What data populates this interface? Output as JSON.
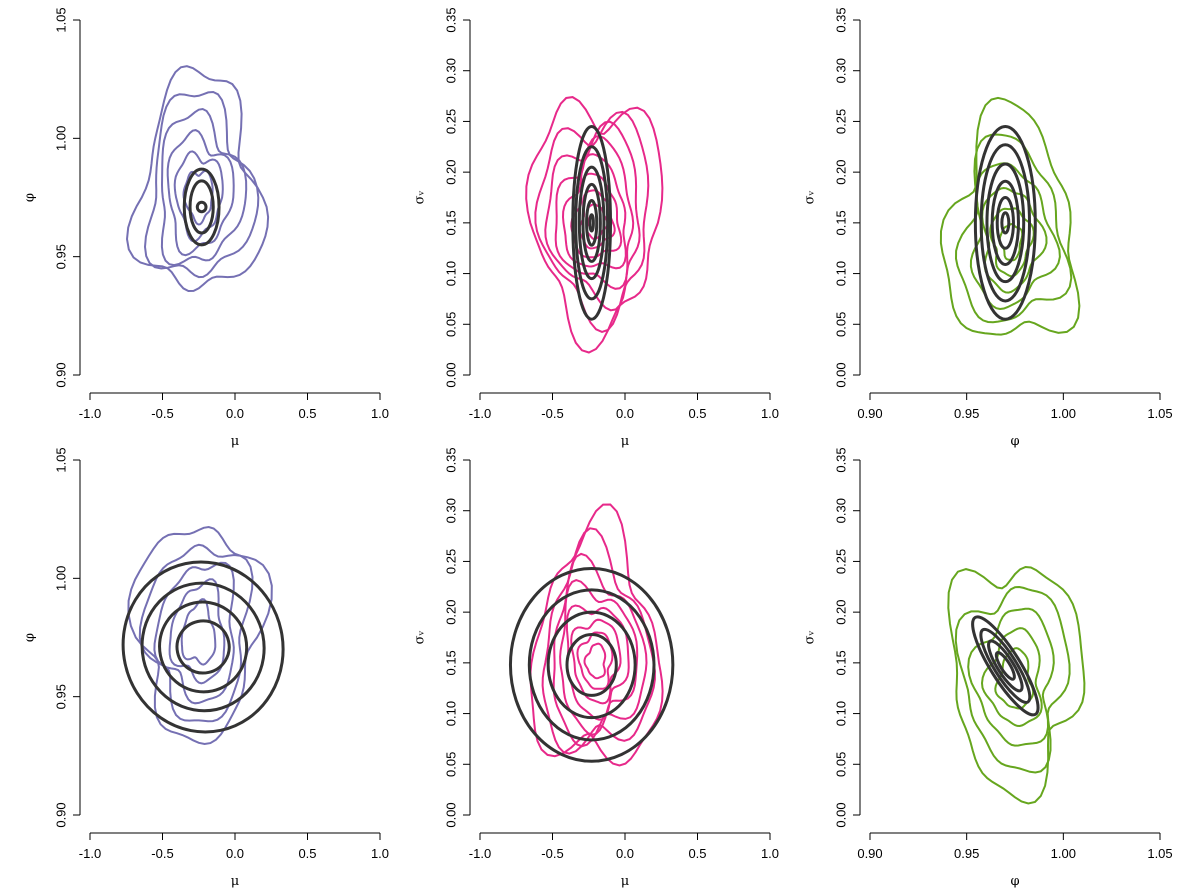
{
  "colors": {
    "blue": "#7570b3",
    "pink": "#e7298a",
    "green": "#66a61e",
    "black": "#333333"
  },
  "chart_data": [
    {
      "type": "contour",
      "panel": "top-left",
      "xlabel": "μ",
      "ylabel": "φ",
      "xlim": [
        -1.0,
        1.0
      ],
      "ylim": [
        0.9,
        1.05
      ],
      "xticks": [
        "-1.0",
        "-0.5",
        "0.0",
        "0.5",
        "1.0"
      ],
      "xtick_values": [
        -1.0,
        -0.5,
        0.0,
        0.5,
        1.0
      ],
      "yticks": [
        "0.90",
        "0.95",
        "1.00",
        "1.05"
      ],
      "ytick_values": [
        0.9,
        0.95,
        1.0,
        1.05
      ],
      "posterior_color": "#7570b3",
      "posterior_contours": {
        "center": [
          -0.25,
          0.975
        ],
        "radii": [
          0.95,
          0.8,
          0.65,
          0.5,
          0.36,
          0.22
        ]
      },
      "approx_contours": {
        "shape": "ellipse",
        "center": [
          -0.23,
          0.971
        ],
        "rx": [
          0.12,
          0.08,
          0.03
        ],
        "ry": [
          0.016,
          0.011,
          0.002
        ],
        "rotation": 0
      }
    },
    {
      "type": "contour",
      "panel": "top-middle",
      "xlabel": "μ",
      "ylabel": "σᵥ",
      "xlim": [
        -1.0,
        1.0
      ],
      "ylim": [
        0.0,
        0.35
      ],
      "xticks": [
        "-1.0",
        "-0.5",
        "0.0",
        "0.5",
        "1.0"
      ],
      "xtick_values": [
        -1.0,
        -0.5,
        0.0,
        0.5,
        1.0
      ],
      "yticks": [
        "0.00",
        "0.05",
        "0.10",
        "0.15",
        "0.20",
        "0.25",
        "0.30",
        "0.35"
      ],
      "ytick_values": [
        0.0,
        0.05,
        0.1,
        0.15,
        0.2,
        0.25,
        0.3,
        0.35
      ],
      "posterior_color": "#e7298a",
      "posterior_contours": {
        "center": [
          -0.2,
          0.15
        ],
        "radii": [
          1.0,
          0.85,
          0.72,
          0.6,
          0.48,
          0.36,
          0.25,
          0.15
        ]
      },
      "approx_contours": {
        "shape": "ellipse",
        "center": [
          -0.23,
          0.15
        ],
        "rx": [
          0.13,
          0.11,
          0.085,
          0.06,
          0.035,
          0.012
        ],
        "ry": [
          0.095,
          0.075,
          0.055,
          0.038,
          0.022,
          0.008
        ],
        "rotation": 0
      }
    },
    {
      "type": "contour",
      "panel": "top-right",
      "xlabel": "φ",
      "ylabel": "σᵥ",
      "xlim": [
        0.9,
        1.05
      ],
      "ylim": [
        0.0,
        0.35
      ],
      "xticks": [
        "0.90",
        "0.95",
        "1.00",
        "1.05"
      ],
      "xtick_values": [
        0.9,
        0.95,
        1.0,
        1.05
      ],
      "yticks": [
        "0.00",
        "0.05",
        "0.10",
        "0.15",
        "0.20",
        "0.25",
        "0.30",
        "0.35"
      ],
      "ytick_values": [
        0.0,
        0.05,
        0.1,
        0.15,
        0.2,
        0.25,
        0.3,
        0.35
      ],
      "posterior_color": "#66a61e",
      "posterior_contours": {
        "center": [
          0.973,
          0.13
        ],
        "radii": [
          1.0,
          0.8,
          0.62,
          0.45,
          0.3,
          0.16
        ]
      },
      "approx_contours": {
        "shape": "ellipse",
        "center": [
          0.97,
          0.15
        ],
        "rx": [
          0.0155,
          0.0125,
          0.0095,
          0.0068,
          0.0042,
          0.0018
        ],
        "ry": [
          0.095,
          0.077,
          0.058,
          0.041,
          0.025,
          0.01
        ],
        "rotation": 0
      }
    },
    {
      "type": "contour",
      "panel": "bottom-left",
      "xlabel": "μ",
      "ylabel": "φ",
      "xlim": [
        -1.0,
        1.0
      ],
      "ylim": [
        0.9,
        1.05
      ],
      "xticks": [
        "-1.0",
        "-0.5",
        "0.0",
        "0.5",
        "1.0"
      ],
      "xtick_values": [
        -1.0,
        -0.5,
        0.0,
        0.5,
        1.0
      ],
      "yticks": [
        "0.90",
        "0.95",
        "1.00",
        "1.05"
      ],
      "ytick_values": [
        0.9,
        0.95,
        1.0,
        1.05
      ],
      "posterior_color": "#7570b3",
      "posterior_contours": {
        "center": [
          -0.25,
          0.975
        ],
        "radii": [
          0.95,
          0.78,
          0.6,
          0.42,
          0.26
        ]
      },
      "approx_contours": {
        "shape": "ellipse",
        "center": [
          -0.22,
          0.971
        ],
        "rx": [
          0.55,
          0.42,
          0.3,
          0.18
        ],
        "ry": [
          0.036,
          0.027,
          0.019,
          0.011
        ],
        "rotation": -12
      }
    },
    {
      "type": "contour",
      "panel": "bottom-middle",
      "xlabel": "μ",
      "ylabel": "σᵥ",
      "xlim": [
        -1.0,
        1.0
      ],
      "ylim": [
        0.0,
        0.35
      ],
      "xticks": [
        "-1.0",
        "-0.5",
        "0.0",
        "0.5",
        "1.0"
      ],
      "xtick_values": [
        -1.0,
        -0.5,
        0.0,
        0.5,
        1.0
      ],
      "yticks": [
        "0.00",
        "0.05",
        "0.10",
        "0.15",
        "0.20",
        "0.25",
        "0.30",
        "0.35"
      ],
      "ytick_values": [
        0.0,
        0.05,
        0.1,
        0.15,
        0.2,
        0.25,
        0.3,
        0.35
      ],
      "posterior_color": "#e7298a",
      "posterior_contours": {
        "center": [
          -0.2,
          0.15
        ],
        "radii": [
          1.0,
          0.85,
          0.72,
          0.6,
          0.48,
          0.36,
          0.25,
          0.15
        ]
      },
      "approx_contours": {
        "shape": "ellipse",
        "center": [
          -0.23,
          0.148
        ],
        "rx": [
          0.56,
          0.43,
          0.3,
          0.17
        ],
        "ry": [
          0.095,
          0.074,
          0.052,
          0.03
        ],
        "rotation": 0
      }
    },
    {
      "type": "contour",
      "panel": "bottom-right",
      "xlabel": "φ",
      "ylabel": "σᵥ",
      "xlim": [
        0.9,
        1.05
      ],
      "ylim": [
        0.0,
        0.35
      ],
      "xticks": [
        "0.90",
        "0.95",
        "1.00",
        "1.05"
      ],
      "xtick_values": [
        0.9,
        0.95,
        1.0,
        1.05
      ],
      "yticks": [
        "0.00",
        "0.05",
        "0.10",
        "0.15",
        "0.20",
        "0.25",
        "0.30",
        "0.35"
      ],
      "ytick_values": [
        0.0,
        0.05,
        0.1,
        0.15,
        0.2,
        0.25,
        0.3,
        0.35
      ],
      "posterior_color": "#66a61e",
      "posterior_contours": {
        "center": [
          0.975,
          0.13
        ],
        "radii": [
          1.0,
          0.8,
          0.6,
          0.42,
          0.26
        ]
      },
      "approx_contours": {
        "shape": "ellipse",
        "center": [
          0.97,
          0.147
        ],
        "rx": [
          0.0295,
          0.022,
          0.015,
          0.008
        ],
        "ry": [
          0.0145,
          0.011,
          0.0078,
          0.0045
        ],
        "rotation": 58
      }
    }
  ]
}
